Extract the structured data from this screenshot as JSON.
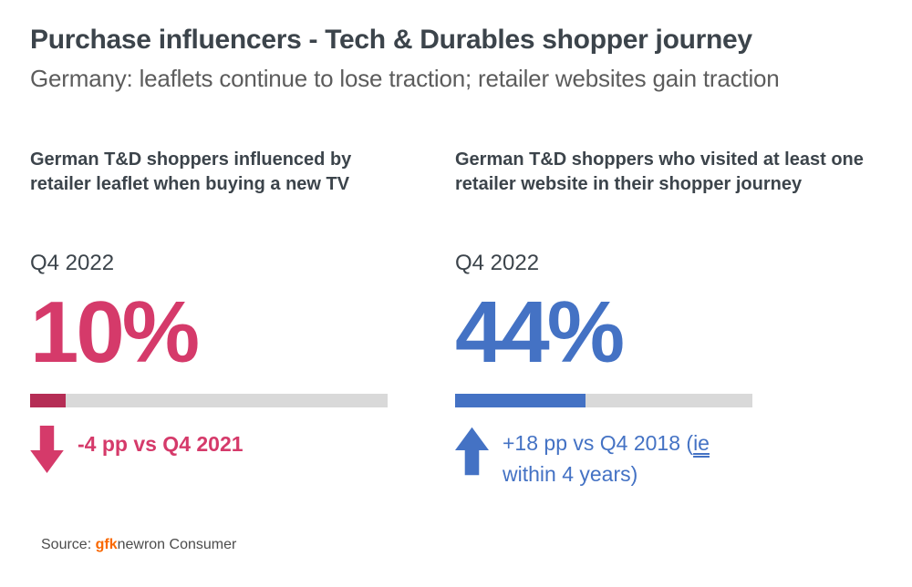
{
  "header": {
    "title": "Purchase influencers - Tech & Durables shopper journey",
    "subtitle": "Germany: leaflets continue to lose traction; retailer websites gain traction"
  },
  "left_panel": {
    "heading": "German T&D shoppers influenced by retailer leaflet when buying a new TV",
    "period": "Q4 2022",
    "value": "10%",
    "value_percent": 10,
    "trend": "down",
    "change_text": "-4 pp vs Q4 2021",
    "arrow_color": "#d53a6a",
    "number_color": "#d53a6a",
    "bar_fill_color": "#b52d55",
    "bar_track_color": "#d9d9d9"
  },
  "right_panel": {
    "heading": "German T&D shoppers who visited at least one retailer website in their shopper journey",
    "period": "Q4 2022",
    "value": "44%",
    "value_percent": 44,
    "trend": "up",
    "change_prefix": "+18 pp vs Q4 2018 (",
    "change_underlined": "ie",
    "change_suffix": " within 4 years)",
    "arrow_color": "#4472c4",
    "number_color": "#4472c4",
    "bar_fill_color": "#4472c4",
    "bar_track_color": "#d9d9d9"
  },
  "footer": {
    "source_label": "Source: ",
    "brand": "gfk",
    "brand_suffix": "newron Consumer",
    "brand_color": "#f96800"
  },
  "colors": {
    "heading_text": "#3c444b",
    "subtitle_text": "#5c5c5c",
    "pink": "#d53a6a",
    "pink_dark": "#b52d55",
    "blue": "#4472c4",
    "track_gray": "#d9d9d9",
    "background": "#ffffff"
  },
  "chart_data": [
    {
      "type": "bar",
      "title": "German T&D shoppers influenced by retailer leaflet when buying a new TV",
      "categories": [
        "Q4 2022"
      ],
      "values": [
        10
      ],
      "unit": "%",
      "xlim": [
        0,
        100
      ],
      "annotations": [
        "-4 pp vs Q4 2021"
      ],
      "trend": "down",
      "series_color": "#b52d55"
    },
    {
      "type": "bar",
      "title": "German T&D shoppers who visited at least one retailer website in their shopper journey",
      "categories": [
        "Q4 2022"
      ],
      "values": [
        44
      ],
      "unit": "%",
      "xlim": [
        0,
        100
      ],
      "annotations": [
        "+18 pp vs Q4 2018 (ie within 4 years)"
      ],
      "trend": "up",
      "series_color": "#4472c4"
    }
  ]
}
